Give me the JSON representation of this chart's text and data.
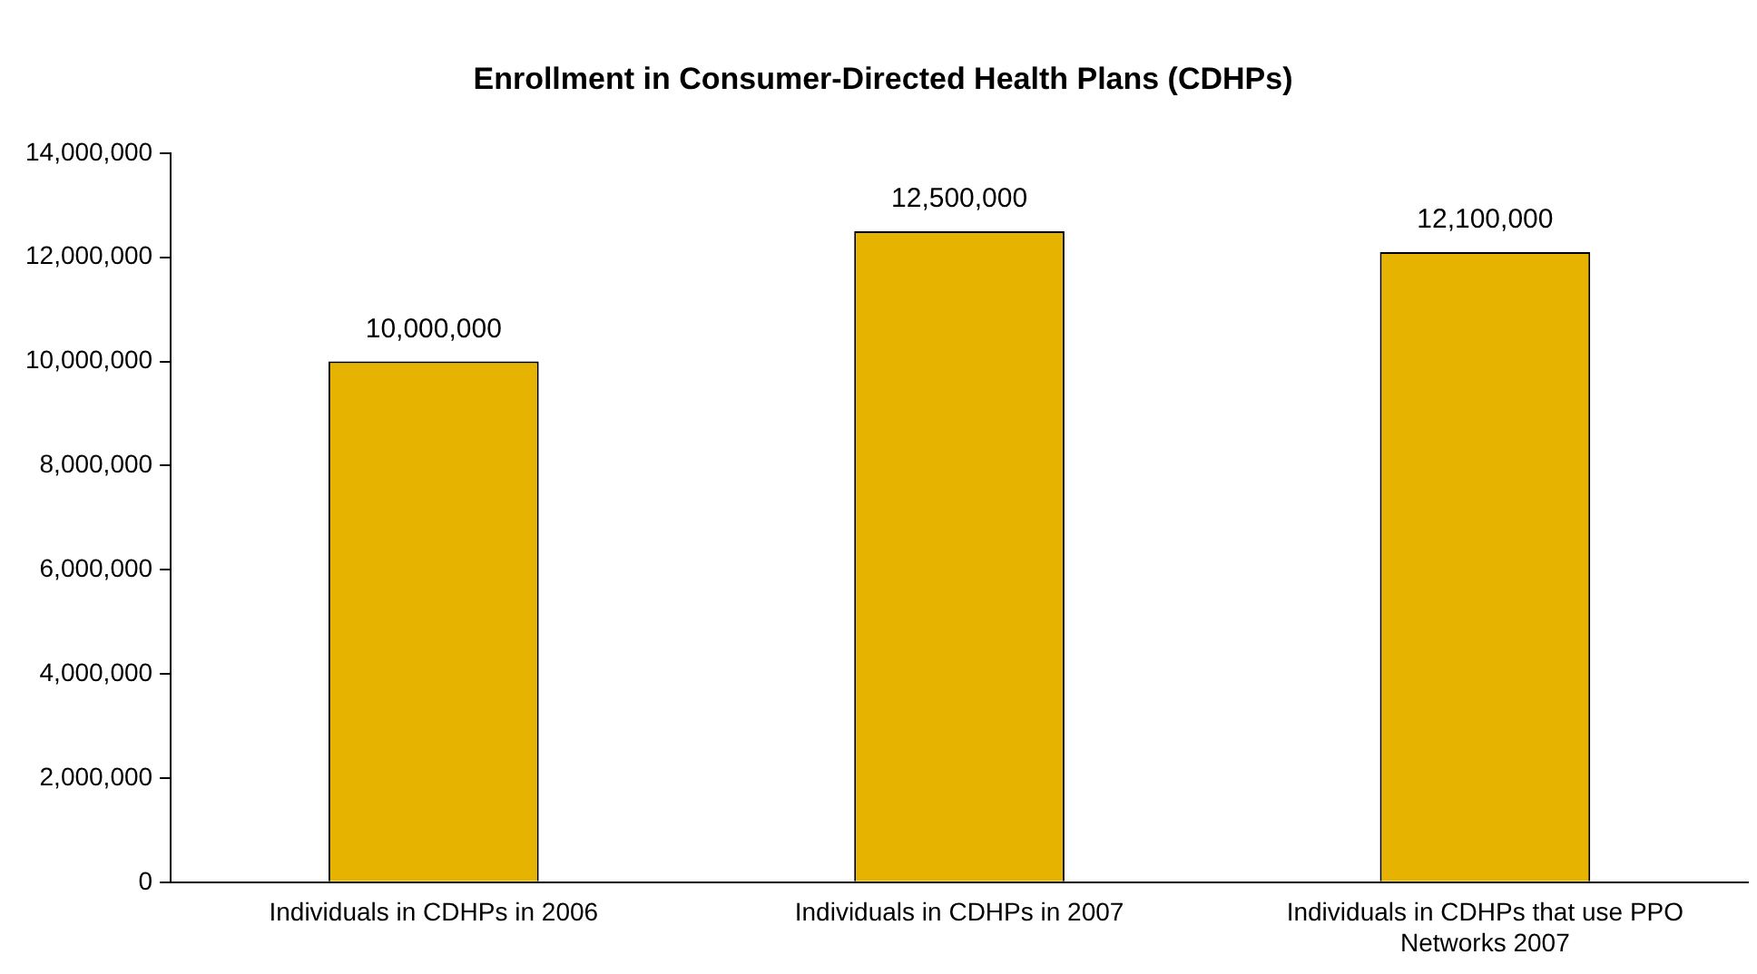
{
  "chart_data": {
    "type": "bar",
    "title": "Enrollment in Consumer-Directed Health Plans (CDHPs)",
    "categories": [
      "Individuals in CDHPs in 2006",
      "Individuals in CDHPs in 2007",
      "Individuals in CDHPs that use PPO Networks 2007"
    ],
    "values": [
      10000000,
      12500000,
      12100000
    ],
    "value_labels": [
      "10,000,000",
      "12,500,000",
      "12,100,000"
    ],
    "color": "#e6b400",
    "ylim": [
      0,
      14000000
    ],
    "yticks": [
      {
        "value": 0,
        "label": "0"
      },
      {
        "value": 2000000,
        "label": "2,000,000"
      },
      {
        "value": 4000000,
        "label": "4,000,000"
      },
      {
        "value": 6000000,
        "label": "6,000,000"
      },
      {
        "value": 8000000,
        "label": "8,000,000"
      },
      {
        "value": 10000000,
        "label": "10,000,000"
      },
      {
        "value": 12000000,
        "label": "12,000,000"
      },
      {
        "value": 14000000,
        "label": "14,000,000"
      }
    ],
    "grid": false,
    "legend": false
  }
}
